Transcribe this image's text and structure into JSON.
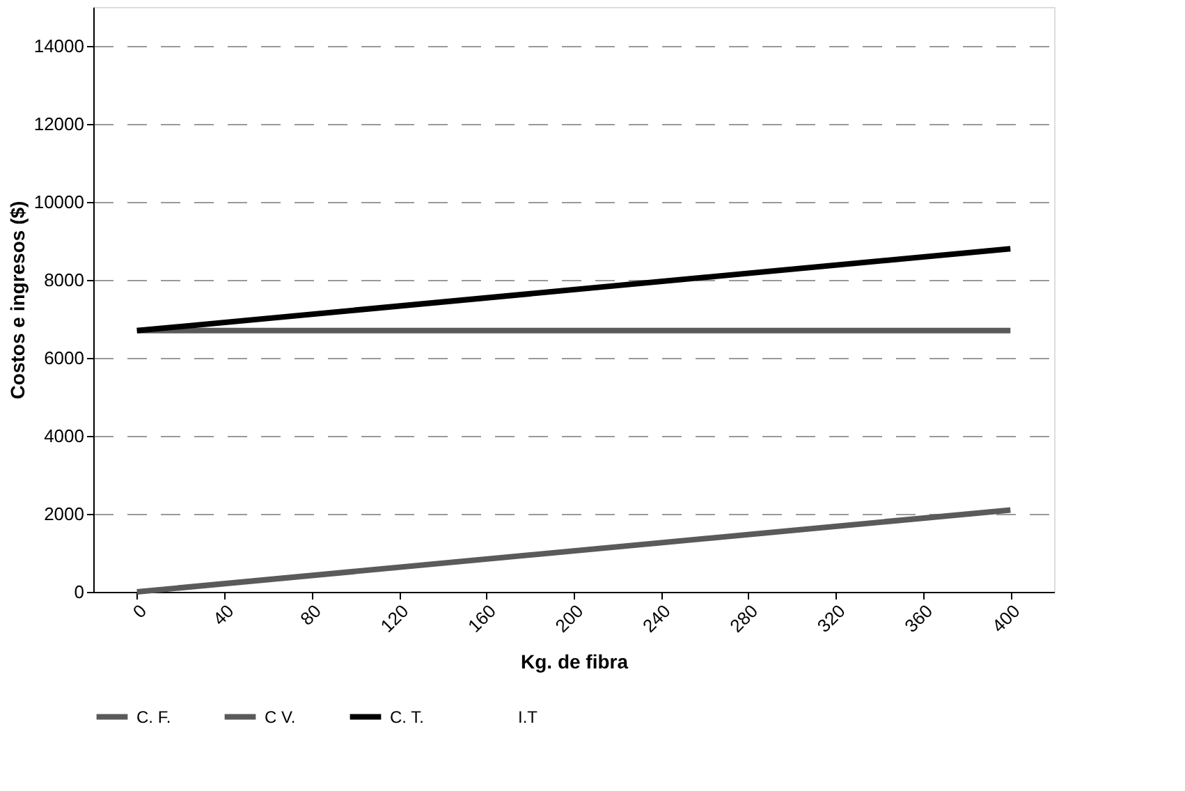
{
  "chart_data": {
    "type": "line",
    "xlabel": "Kg. de fibra",
    "ylabel": "Costos e ingresos ($)",
    "x": [
      0,
      400
    ],
    "series": [
      {
        "name": "C. F.",
        "color": "#5a5a5a",
        "values": [
          6700,
          6700
        ]
      },
      {
        "name": "C V.",
        "color": "#5a5a5a",
        "values": [
          0,
          2100
        ]
      },
      {
        "name": "C. T.",
        "color": "#000000",
        "values": [
          6700,
          8800
        ]
      },
      {
        "name": "I.T",
        "values": [
          null,
          null
        ]
      }
    ],
    "xlim": [
      -20,
      420
    ],
    "xticks": [
      0,
      40,
      80,
      120,
      160,
      200,
      240,
      280,
      320,
      360,
      400
    ],
    "ylim": [
      0,
      15000
    ],
    "yticks": [
      0,
      2000,
      4000,
      6000,
      8000,
      10000,
      12000,
      14000
    ],
    "grid": "y",
    "legend": "bottom",
    "marker": "none",
    "line_style": "solid"
  }
}
